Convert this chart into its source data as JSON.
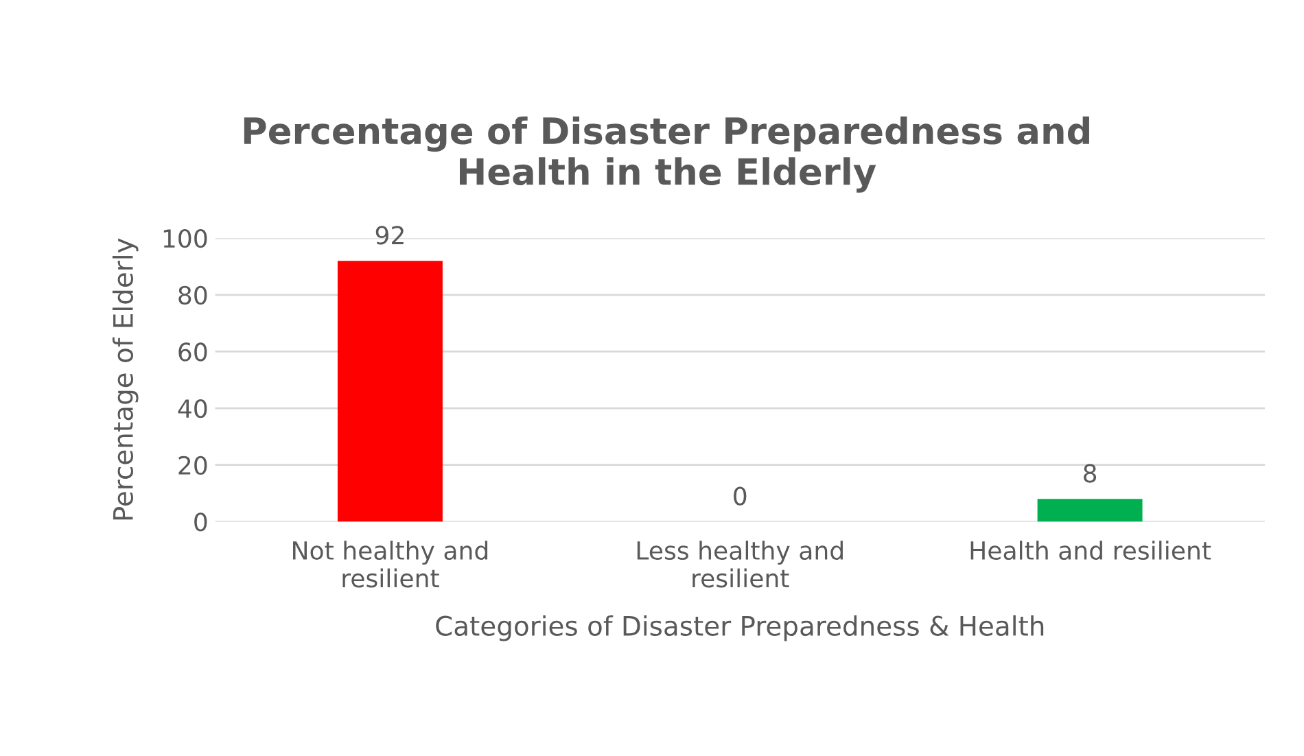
{
  "chart_data": {
    "type": "bar",
    "title": "Percentage of Disaster Preparedness and Health in the Elderly",
    "xlabel": "Categories of Disaster Preparedness & Health",
    "ylabel": "Percentage of Elderly",
    "categories": [
      "Not healthy and resilient",
      "Less healthy and resilient",
      "Health and resilient"
    ],
    "values": [
      92,
      0,
      8
    ],
    "colors": [
      "#ff0000",
      "#ffc000",
      "#00b050"
    ],
    "ylim": [
      0,
      100
    ],
    "yticks": [
      0,
      20,
      40,
      60,
      80,
      100
    ],
    "grid": "y",
    "data_labels": true
  }
}
